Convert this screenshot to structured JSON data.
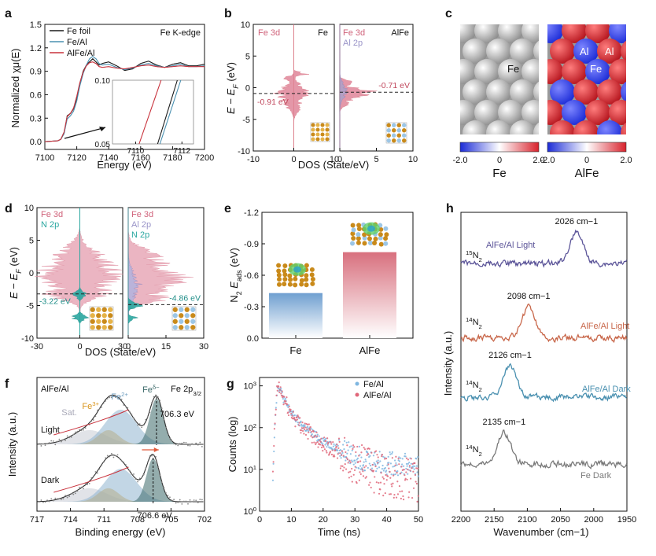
{
  "chart_data": [
    {
      "panel": "a",
      "type": "line",
      "label": "Fe K-edge",
      "xlabel": "Energy (eV)",
      "ylabel": "Normalized χμ(E)",
      "xlim": [
        7100,
        7200
      ],
      "ylim": [
        -0.1,
        1.5
      ],
      "xticks": [
        "7100",
        "7120",
        "7140",
        "7160",
        "7180",
        "7200"
      ],
      "yticks": [
        "0.0",
        "0.3",
        "0.6",
        "0.9",
        "1.2",
        "1.5"
      ],
      "series": [
        {
          "name": "Fe foil",
          "color": "#1a1a1a",
          "x": [
            7100,
            7108,
            7110,
            7112,
            7114,
            7116,
            7118,
            7120,
            7122,
            7124,
            7126,
            7128,
            7130,
            7132,
            7134,
            7136,
            7140,
            7145,
            7150,
            7155,
            7160,
            7165,
            7170,
            7175,
            7180,
            7185,
            7190,
            7195,
            7200
          ],
          "y": [
            0.0,
            0.01,
            0.03,
            0.1,
            0.33,
            0.36,
            0.42,
            0.55,
            0.75,
            0.9,
            0.98,
            1.02,
            1.06,
            1.02,
            0.98,
            1.0,
            1.02,
            0.97,
            0.91,
            0.93,
            1.0,
            1.03,
            0.98,
            0.95,
            0.99,
            1.01,
            0.97,
            0.97,
            0.99
          ]
        },
        {
          "name": "Fe/Al",
          "color": "#4a90b0",
          "x": [
            7100,
            7108,
            7110,
            7112,
            7114,
            7116,
            7118,
            7120,
            7122,
            7124,
            7126,
            7128,
            7130,
            7132,
            7134,
            7136,
            7140,
            7145,
            7150,
            7155,
            7160,
            7165,
            7170,
            7175,
            7180,
            7185,
            7190,
            7195,
            7200
          ],
          "y": [
            0.0,
            0.01,
            0.03,
            0.1,
            0.29,
            0.33,
            0.39,
            0.52,
            0.72,
            0.87,
            0.98,
            1.06,
            1.09,
            1.06,
            1.0,
            0.98,
            0.99,
            0.95,
            0.92,
            0.94,
            0.98,
            1.0,
            0.97,
            0.95,
            0.97,
            0.99,
            0.96,
            0.96,
            0.97
          ]
        },
        {
          "name": "AlFe/Al",
          "color": "#c8323c",
          "x": [
            7100,
            7108,
            7110,
            7112,
            7114,
            7116,
            7118,
            7120,
            7122,
            7124,
            7126,
            7128,
            7130,
            7132,
            7134,
            7136,
            7140,
            7145,
            7150,
            7155,
            7160,
            7165,
            7170,
            7175,
            7180,
            7185,
            7190,
            7195,
            7200
          ],
          "y": [
            0.0,
            0.01,
            0.03,
            0.12,
            0.32,
            0.36,
            0.43,
            0.58,
            0.76,
            0.89,
            0.97,
            1.01,
            1.02,
            1.0,
            0.96,
            0.95,
            0.96,
            0.94,
            0.93,
            0.95,
            0.97,
            0.98,
            0.96,
            0.95,
            0.96,
            0.97,
            0.96,
            0.96,
            0.96
          ]
        }
      ],
      "inset": {
        "xlim": [
          7109,
          7112.5
        ],
        "ylim": [
          0.05,
          0.1
        ],
        "xticks": [
          "7110",
          "7112"
        ],
        "yticks": [
          "0.05",
          "0.10"
        ]
      }
    },
    {
      "panel": "b",
      "type": "area",
      "xlabel": "DOS (State/eV)",
      "ylabel": "E − E_F (eV)",
      "ylim": [
        -10,
        10
      ],
      "left": {
        "title": "Fe",
        "legend": [
          "Fe 3d"
        ],
        "xlim": [
          -10,
          10
        ],
        "xticks": [
          "-10",
          "0",
          "10"
        ],
        "annotation": "-0.91 eV",
        "level": -0.91
      },
      "right": {
        "title": "AlFe",
        "legend": [
          "Fe 3d",
          "Al 2p"
        ],
        "xlim": [
          0,
          10
        ],
        "xticks": [
          "0",
          "5",
          "10"
        ],
        "annotation": "-0.71 eV",
        "level": -0.71
      },
      "yticks": [
        "10",
        "5",
        "0",
        "-5",
        "-10"
      ]
    },
    {
      "panel": "c",
      "type": "heatmap",
      "left": {
        "caption": "Fe",
        "atom_labels": [
          "Fe"
        ],
        "colorbar": [
          "-2.0",
          "2.0"
        ]
      },
      "right": {
        "caption": "AlFe",
        "atom_labels": [
          "Al",
          "Al",
          "Fe"
        ],
        "colorbar": [
          "-2.0",
          "0",
          "2.0"
        ]
      },
      "colors": {
        "low": "#1b2bd6",
        "mid": "#ffffff",
        "high": "#d8222c"
      }
    },
    {
      "panel": "d",
      "type": "area",
      "xlabel": "DOS (State/eV)",
      "ylabel": "E − E_F (eV)",
      "ylim": [
        -10,
        10
      ],
      "left": {
        "legend": [
          "Fe 3d",
          "N 2p"
        ],
        "xlim": [
          -30,
          30
        ],
        "xticks": [
          "-30",
          "0",
          "30"
        ],
        "annotation": "-3.22 eV",
        "level": -3.22
      },
      "right": {
        "legend": [
          "Fe 3d",
          "Al 2p",
          "N 2p"
        ],
        "xlim": [
          0,
          30
        ],
        "xticks": [
          "0",
          "15",
          "30"
        ],
        "annotation": "-4.86 eV",
        "level": -4.86
      },
      "yticks": [
        "10",
        "5",
        "0",
        "-5",
        "-10"
      ]
    },
    {
      "panel": "e",
      "type": "bar",
      "ylabel": "N2 E_ads (eV)",
      "categories": [
        "Fe",
        "AlFe"
      ],
      "values": [
        -0.43,
        -0.82
      ],
      "colors": [
        "#6f9fd0",
        "#d8707e"
      ],
      "ylim": [
        0.0,
        -1.2
      ],
      "yticks": [
        "-1.2",
        "-0.9",
        "-0.6",
        "-0.3",
        "0.0"
      ]
    },
    {
      "panel": "f",
      "type": "line",
      "label": "AlFe/Al",
      "title_right": "Fe 2p3/2",
      "xlabel": "Binding energy (eV)",
      "ylabel": "Intensity (a.u.)",
      "xlim": [
        717,
        702
      ],
      "xticks": [
        "717",
        "714",
        "711",
        "708",
        "705",
        "702"
      ],
      "rows": [
        "Light",
        "Dark"
      ],
      "peak_labels": [
        "Sat.",
        "Fe3+",
        "Fe2+",
        "Fe δ−"
      ],
      "annotations": [
        "706.3 eV",
        "706.6 eV"
      ],
      "peaks": [
        706.3,
        706.6
      ]
    },
    {
      "panel": "g",
      "type": "scatter",
      "xlabel": "Time (ns)",
      "ylabel": "Counts (log)",
      "xlim": [
        0,
        50
      ],
      "ylim": [
        1,
        1000
      ],
      "yscale": "log",
      "xticks": [
        "0",
        "10",
        "20",
        "30",
        "40",
        "50"
      ],
      "yticks": [
        "10^0",
        "10^1",
        "10^2",
        "10^3"
      ],
      "series": [
        {
          "name": "Fe/Al",
          "color": "#7fb6e0",
          "peak_x": 6,
          "peak_y": 1000,
          "tail_y": 12
        },
        {
          "name": "AlFe/Al",
          "color": "#e0677a",
          "peak_x": 6,
          "peak_y": 1000,
          "tail_y": 5
        }
      ]
    },
    {
      "panel": "h",
      "type": "line",
      "xlabel": "Wavenumber (cm−1)",
      "ylabel": "Intensity (a.u.)",
      "xlim": [
        2200,
        1950
      ],
      "xticks": [
        "2200",
        "2150",
        "2100",
        "2050",
        "2000",
        "1950"
      ],
      "series": [
        {
          "name": "AlFe/Al Light",
          "isotope": "15N2",
          "peak": "2026 cm−1",
          "peak_x": 2026,
          "color": "#5c5599"
        },
        {
          "name": "AlFe/Al Light",
          "isotope": "14N2",
          "peak": "2098 cm−1",
          "peak_x": 2098,
          "color": "#c8674a"
        },
        {
          "name": "AlFe/Al Dark",
          "isotope": "14N2",
          "peak": "2126 cm−1",
          "peak_x": 2126,
          "color": "#4a90b0"
        },
        {
          "name": "Fe Dark",
          "isotope": "14N2",
          "peak": "2135 cm−1",
          "peak_x": 2135,
          "color": "#7a7a7a"
        }
      ]
    }
  ]
}
